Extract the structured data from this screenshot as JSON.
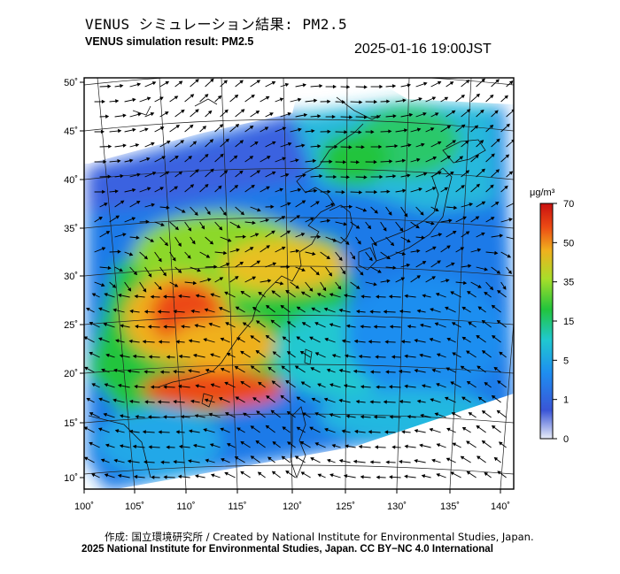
{
  "header": {
    "title_jp": "VENUS シミュレーション結果: PM2.5",
    "title_en": "VENUS simulation result: PM2.5",
    "timestamp": "2025-01-16 19:00JST"
  },
  "map": {
    "lat_labels": [
      "50˚",
      "45˚",
      "40˚",
      "35˚",
      "30˚",
      "25˚",
      "20˚",
      "15˚",
      "10˚"
    ],
    "lon_labels": [
      "100˚",
      "105˚",
      "110˚",
      "115˚",
      "120˚",
      "125˚",
      "130˚",
      "135˚",
      "140˚"
    ],
    "colors": {
      "frame": "#000000",
      "coast": "#111111",
      "grid": "#222222",
      "ocean_blank": "#ffffff"
    }
  },
  "colorbar": {
    "unit": "μg/m³",
    "ticks": [
      "70",
      "50",
      "35",
      "15",
      "5",
      "1",
      "0"
    ],
    "stops": [
      "#d8e0f4",
      "#2f4fd4",
      "#1aa0f0",
      "#20d2c8",
      "#22c83a",
      "#b4e02a",
      "#f2b81e",
      "#ee4a14",
      "#c81010"
    ]
  },
  "footer": {
    "credit_jp": "作成: 国立環境研究所 / Created by National Institute for Environmental Studies, Japan.",
    "credit_en": "2025 National Institute for Environmental Studies, Japan. CC BY−NC 4.0 International"
  }
}
